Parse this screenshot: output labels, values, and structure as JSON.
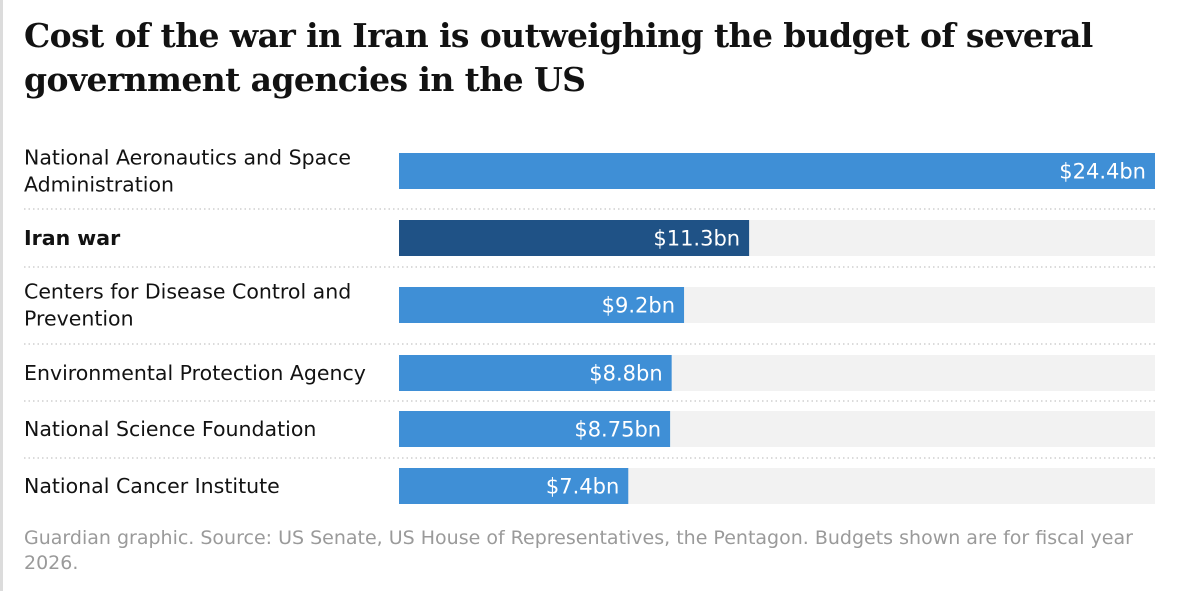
{
  "title": "Cost of the war in Iran is outweighing the budget of several government agencies in the US",
  "source": "Guardian graphic. Source: US Senate, US House of Representatives, the Pentagon. Budgets shown are for fiscal year 2026.",
  "colors": {
    "bar": "#3f8fd6",
    "highlight_bar": "#1f5286",
    "track": "#f2f2f2",
    "divider": "#cfcfcf"
  },
  "chart_data": {
    "type": "bar",
    "orientation": "horizontal",
    "xlim": [
      0,
      24.4
    ],
    "grid": false,
    "categories": [
      "National Aeronautics and Space Administration",
      "Iran war",
      "Centers for Disease Control and Prevention",
      "Environmental Protection Agency",
      "National Science Foundation",
      "National Cancer Institute"
    ],
    "category_lines": [
      [
        "National Aeronautics and Space",
        "Administration"
      ],
      [
        "Iran war"
      ],
      [
        "Centers for Disease Control and",
        "Prevention"
      ],
      [
        "Environmental Protection Agency"
      ],
      [
        "National Science Foundation"
      ],
      [
        "National Cancer Institute"
      ]
    ],
    "values": [
      24.4,
      11.3,
      9.2,
      8.8,
      8.75,
      7.4
    ],
    "value_labels": [
      "$24.4bn",
      "$11.3bn",
      "$9.2bn",
      "$8.8bn",
      "$8.75bn",
      "$7.4bn"
    ],
    "highlighted": [
      false,
      true,
      false,
      false,
      false,
      false
    ]
  }
}
